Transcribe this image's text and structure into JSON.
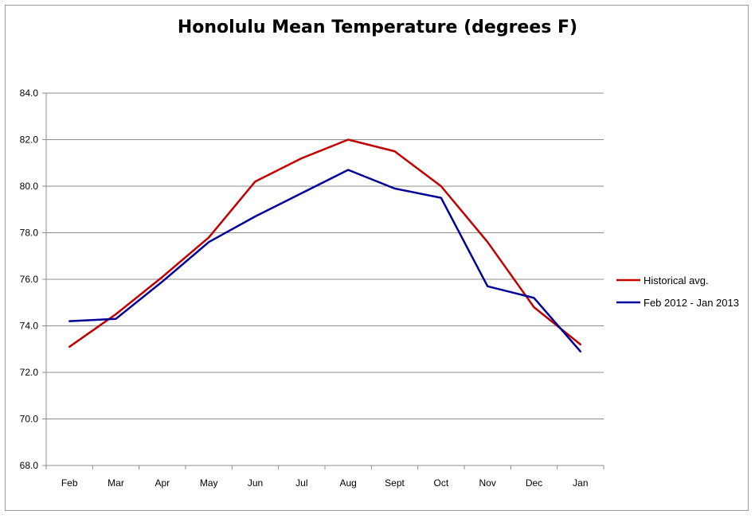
{
  "chart_data": {
    "type": "line",
    "title": "Honolulu Mean Temperature (degrees F)",
    "categories": [
      "Feb",
      "Mar",
      "Apr",
      "May",
      "Jun",
      "Jul",
      "Aug",
      "Sept",
      "Oct",
      "Nov",
      "Dec",
      "Jan"
    ],
    "series": [
      {
        "name": "Historical avg.",
        "color": "#c00000",
        "values": [
          73.1,
          74.5,
          76.1,
          77.8,
          80.2,
          81.2,
          82.0,
          81.5,
          80.0,
          77.6,
          74.8,
          73.2
        ]
      },
      {
        "name": "Feb 2012 - Jan 2013",
        "color": "#000099",
        "values": [
          74.2,
          74.3,
          75.9,
          77.6,
          78.7,
          79.7,
          80.7,
          79.9,
          79.5,
          75.7,
          75.2,
          72.9
        ]
      }
    ],
    "ylim": [
      68.0,
      84.0
    ],
    "ytick_step": 2.0,
    "ytick_labels": [
      "68.0",
      "70.0",
      "72.0",
      "74.0",
      "76.0",
      "78.0",
      "80.0",
      "82.0",
      "84.0"
    ],
    "grid": "horizontal",
    "legend_position": "right",
    "xlabel": "",
    "ylabel": ""
  }
}
